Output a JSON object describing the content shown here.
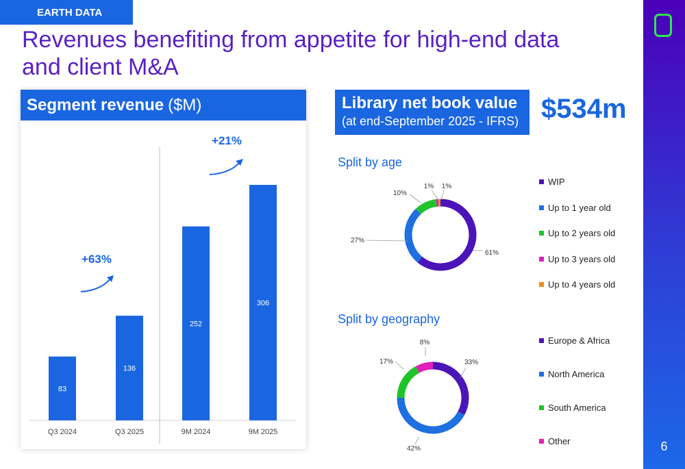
{
  "header": {
    "tag": "EARTH DATA",
    "title": "Revenues benefiting from appetite for high-end data and client M&A"
  },
  "page_number": "6",
  "segment": {
    "title_bold": "Segment revenue",
    "title_unit": "($M)",
    "growth_q3": "+63%",
    "growth_9m": "+21%"
  },
  "library": {
    "title": "Library net book value",
    "subtitle": "(at end-September 2025 - IFRS)",
    "value": "$534m"
  },
  "age": {
    "heading": "Split by age"
  },
  "geo": {
    "heading": "Split by geography"
  },
  "colors": {
    "bar": "#1a66e0",
    "purple": "#4a14b8",
    "blue": "#1e6fe0",
    "green": "#1fc42a",
    "magenta": "#e020b8",
    "orange": "#f08a1a"
  },
  "chart_data": [
    {
      "type": "bar",
      "categories": [
        "Q3 2024",
        "Q3 2025",
        "9M 2024",
        "9M 2025"
      ],
      "values": [
        83,
        136,
        252,
        306
      ],
      "ylim": [
        0,
        320
      ]
    },
    {
      "type": "pie",
      "labels": [
        "WIP",
        "Up to 1 year old",
        "Up to 2 years old",
        "Up to 3 years old",
        "Up to 4 years old"
      ],
      "values": [
        61,
        27,
        10,
        1,
        1
      ],
      "value_labels": [
        "61%",
        "27%",
        "10%",
        "1%",
        "1%"
      ],
      "legend_position": "right"
    },
    {
      "type": "pie",
      "labels": [
        "Europe & Africa",
        "North America",
        "South America",
        "Other"
      ],
      "values": [
        33,
        42,
        17,
        8
      ],
      "value_labels": [
        "33%",
        "42%",
        "17%",
        "8%"
      ],
      "legend_position": "right"
    }
  ]
}
